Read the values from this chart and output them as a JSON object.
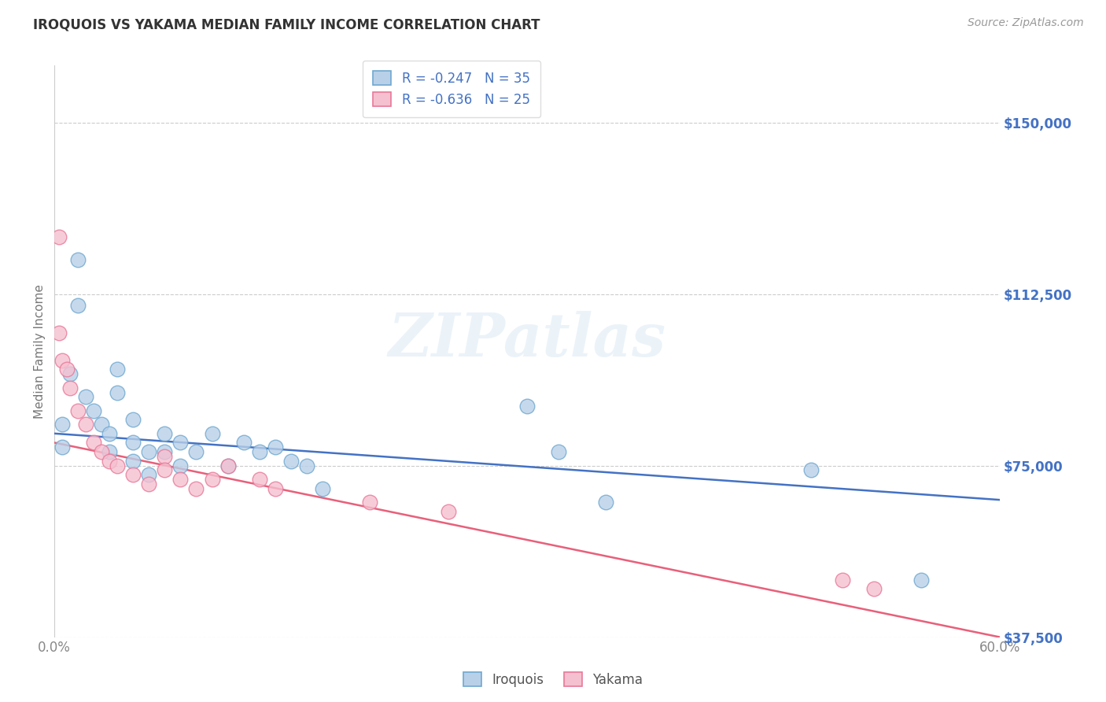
{
  "title": "IROQUOIS VS YAKAMA MEDIAN FAMILY INCOME CORRELATION CHART",
  "source": "Source: ZipAtlas.com",
  "ylabel": "Median Family Income",
  "xlim": [
    0.0,
    0.6
  ],
  "ylim": [
    0,
    162500
  ],
  "plot_ylim": [
    37500,
    162500
  ],
  "yticks": [
    37500,
    75000,
    112500,
    150000
  ],
  "ytick_labels": [
    "$37,500",
    "$75,000",
    "$112,500",
    "$150,000"
  ],
  "xticks": [
    0.0,
    0.1,
    0.2,
    0.3,
    0.4,
    0.5,
    0.6
  ],
  "xtick_labels": [
    "0.0%",
    "",
    "",
    "",
    "",
    "",
    "60.0%"
  ],
  "background_color": "#ffffff",
  "grid_color": "#cccccc",
  "watermark": "ZIPatlas",
  "iroquois_color": "#b8d0e8",
  "iroquois_edge_color": "#6fa8d0",
  "yakama_color": "#f5c0d0",
  "yakama_edge_color": "#e87898",
  "iroquois_line_color": "#4472c4",
  "yakama_line_color": "#e8607a",
  "legend_iroquois_R": "R = -0.247",
  "legend_iroquois_N": "N = 35",
  "legend_yakama_R": "R = -0.636",
  "legend_yakama_N": "N = 25",
  "iroquois_x": [
    0.005,
    0.005,
    0.01,
    0.015,
    0.015,
    0.02,
    0.025,
    0.03,
    0.035,
    0.035,
    0.04,
    0.04,
    0.05,
    0.05,
    0.05,
    0.06,
    0.06,
    0.07,
    0.07,
    0.08,
    0.08,
    0.09,
    0.1,
    0.11,
    0.12,
    0.13,
    0.14,
    0.15,
    0.16,
    0.17,
    0.3,
    0.32,
    0.35,
    0.48,
    0.55
  ],
  "iroquois_y": [
    84000,
    79000,
    95000,
    120000,
    110000,
    90000,
    87000,
    84000,
    82000,
    78000,
    96000,
    91000,
    85000,
    80000,
    76000,
    78000,
    73000,
    82000,
    78000,
    80000,
    75000,
    78000,
    82000,
    75000,
    80000,
    78000,
    79000,
    76000,
    75000,
    70000,
    88000,
    78000,
    67000,
    74000,
    50000
  ],
  "yakama_x": [
    0.003,
    0.003,
    0.005,
    0.008,
    0.01,
    0.015,
    0.02,
    0.025,
    0.03,
    0.035,
    0.04,
    0.05,
    0.06,
    0.07,
    0.07,
    0.08,
    0.09,
    0.1,
    0.11,
    0.13,
    0.14,
    0.2,
    0.25,
    0.5,
    0.52
  ],
  "yakama_y": [
    125000,
    104000,
    98000,
    96000,
    92000,
    87000,
    84000,
    80000,
    78000,
    76000,
    75000,
    73000,
    71000,
    77000,
    74000,
    72000,
    70000,
    72000,
    75000,
    72000,
    70000,
    67000,
    65000,
    50000,
    48000
  ],
  "blue_line_x0": 0.0,
  "blue_line_y0": 82000,
  "blue_line_x1": 0.6,
  "blue_line_y1": 67500,
  "pink_line_x0": 0.0,
  "pink_line_y0": 80000,
  "pink_line_x1": 0.6,
  "pink_line_y1": 37500
}
